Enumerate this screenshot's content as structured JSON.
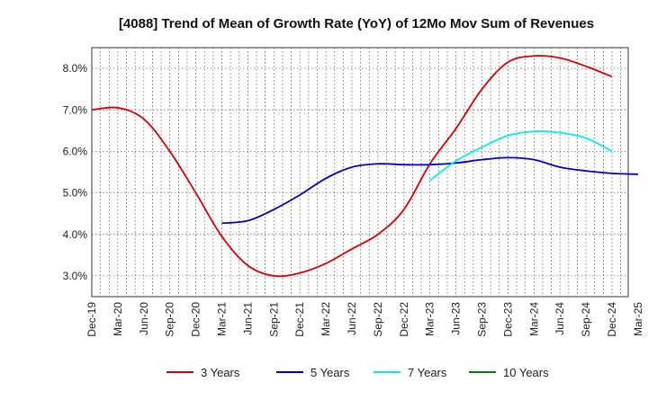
{
  "chart_data": {
    "type": "line",
    "title": "[4088]  Trend of Mean of Growth Rate (YoY) of 12Mo Mov Sum of Revenues",
    "xlabel": "",
    "ylabel": "",
    "ylim": [
      2.5,
      8.5
    ],
    "y_ticks": [
      3.0,
      4.0,
      5.0,
      6.0,
      7.0,
      8.0
    ],
    "y_tick_labels": [
      "3.0%",
      "4.0%",
      "5.0%",
      "6.0%",
      "7.0%",
      "8.0%"
    ],
    "x_tick_labels": [
      "Dec-19",
      "Mar-20",
      "Jun-20",
      "Sep-20",
      "Dec-20",
      "Mar-21",
      "Jun-21",
      "Sep-21",
      "Dec-21",
      "Mar-22",
      "Jun-22",
      "Sep-22",
      "Dec-22",
      "Mar-23",
      "Jun-23",
      "Sep-23",
      "Dec-23",
      "Mar-24",
      "Jun-24",
      "Sep-24",
      "Dec-24",
      "Mar-25"
    ],
    "grid": true,
    "legend_position": "bottom",
    "series": [
      {
        "name": "3 Years",
        "color": "#dd0000",
        "start_index": 0,
        "values": [
          7.0,
          7.05,
          6.78,
          6.0,
          5.0,
          3.95,
          3.25,
          3.0,
          3.07,
          3.3,
          3.65,
          4.0,
          4.6,
          5.7,
          6.55,
          7.5,
          8.15,
          8.3,
          8.25,
          8.05,
          7.8
        ]
      },
      {
        "name": "5 Years",
        "color": "#0000cc",
        "start_index": 5,
        "values": [
          4.27,
          4.33,
          4.6,
          4.95,
          5.35,
          5.62,
          5.7,
          5.68,
          5.68,
          5.72,
          5.8,
          5.85,
          5.8,
          5.62,
          5.53,
          5.47,
          5.45
        ]
      },
      {
        "name": "7 Years",
        "color": "#00eeee",
        "start_index": 13,
        "values": [
          5.3,
          5.77,
          6.1,
          6.38,
          6.48,
          6.45,
          6.32,
          6.0
        ]
      },
      {
        "name": "10 Years",
        "color": "#008000",
        "start_index": 0,
        "values": []
      }
    ]
  }
}
